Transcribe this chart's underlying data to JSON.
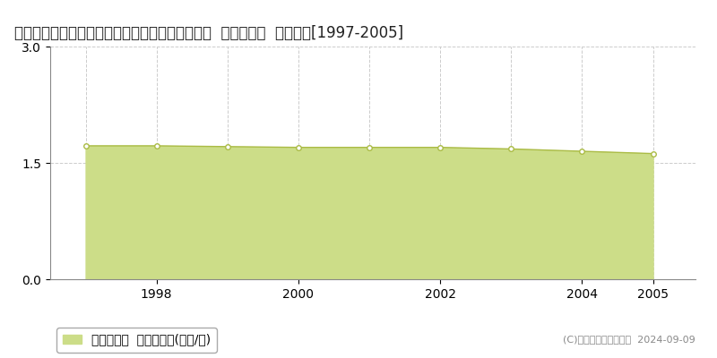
{
  "title": "福島県東白川郡鮫川村大字富田字彦次郎２８７番  基準地価格  地価推移[1997-2005]",
  "years": [
    1997,
    1998,
    1999,
    2000,
    2001,
    2002,
    2003,
    2004,
    2005
  ],
  "values": [
    1.72,
    1.72,
    1.71,
    1.7,
    1.7,
    1.7,
    1.68,
    1.65,
    1.62
  ],
  "ylim": [
    0,
    3
  ],
  "yticks": [
    0,
    1.5,
    3
  ],
  "xticks": [
    1998,
    2000,
    2002,
    2004,
    2005
  ],
  "fill_color": "#ccdd88",
  "line_color": "#aabb44",
  "marker_color": "#ffffff",
  "marker_edge_color": "#aabb44",
  "grid_color": "#cccccc",
  "bg_color": "#ffffff",
  "legend_label": "基準地価格  平均坪単価(万円/坪)",
  "copyright_text": "(C)土地価格ドットコム  2024-09-09",
  "title_fontsize": 12,
  "axis_fontsize": 10,
  "legend_fontsize": 10
}
